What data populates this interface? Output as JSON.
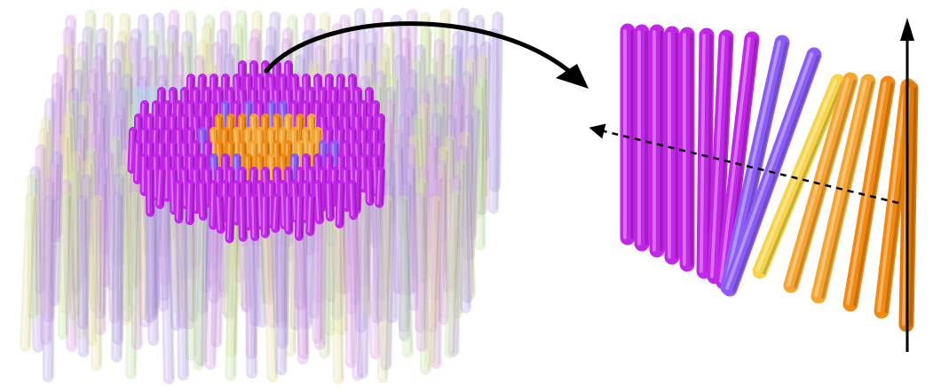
{
  "figure": {
    "colors": {
      "magenta": "#c226e8",
      "violet": "#8b5cf6",
      "yellow": "#f7d54a",
      "light_orange": "#f7a531",
      "orange": "#f08a12",
      "dark_orange": "#e07a0a",
      "faint_magenta": "#d8a6e8",
      "faint_violet": "#b9a7e6",
      "faint_yellow": "#e8e2a6",
      "faint_green": "#c8e6a6",
      "highlight_box": "#b8d4f6",
      "arrow": "#000000"
    },
    "icons": {
      "curved_arrow": "curved-arrow-icon",
      "vertical_axis_arrow": "vertical-axis-arrow-icon",
      "dashed_axis_arrow": "dashed-axis-arrow-icon"
    }
  }
}
